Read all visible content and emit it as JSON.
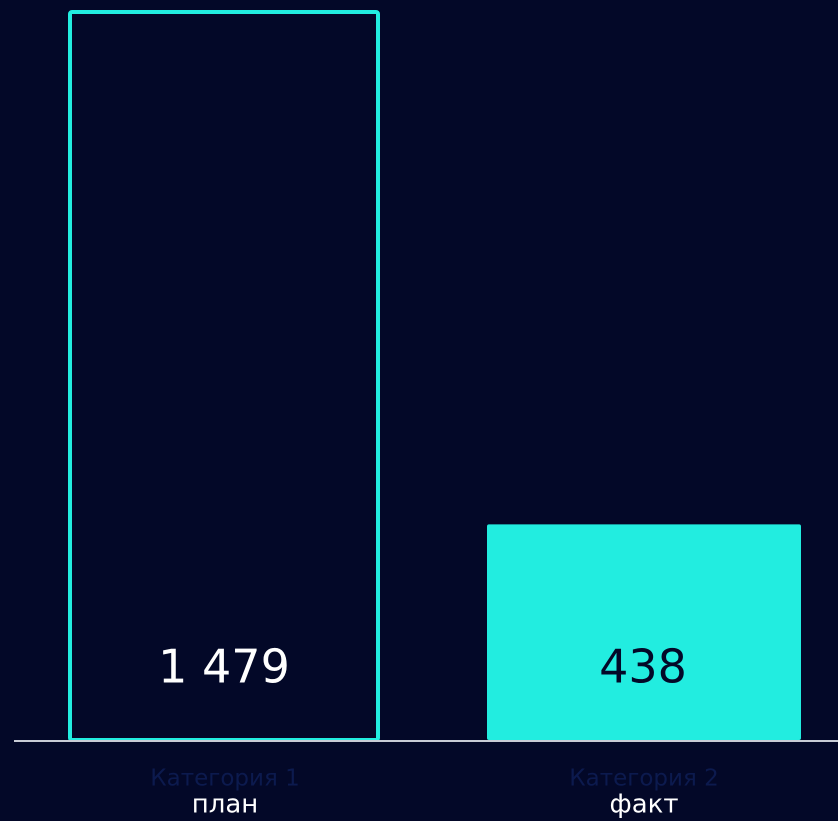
{
  "chart_data": {
    "type": "bar",
    "categories": [
      "Категория 1",
      "Категория 2"
    ],
    "sublabels": [
      "план",
      "факт"
    ],
    "values": [
      1479,
      438
    ],
    "value_labels": [
      "1 479",
      "438"
    ],
    "styles": [
      "outline",
      "filled"
    ],
    "color": "#22ede0",
    "background": "#030828"
  }
}
